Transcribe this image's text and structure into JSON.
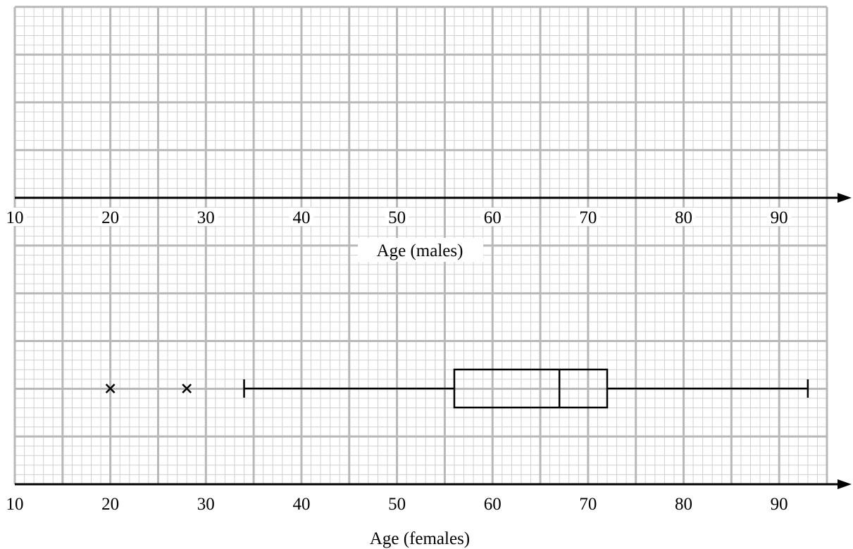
{
  "chart_data": [
    {
      "type": "boxplot",
      "xlabel": "Age (males)",
      "xlim": [
        10,
        95
      ],
      "xticks": [
        10,
        20,
        30,
        40,
        50,
        60,
        70,
        80,
        90
      ],
      "tick_labels": [
        "10",
        "20",
        "30",
        "40",
        "50",
        "60",
        "70",
        "80",
        "90"
      ],
      "boxes": []
    },
    {
      "type": "boxplot",
      "xlabel": "Age (females)",
      "xlim": [
        10,
        95
      ],
      "xticks": [
        10,
        20,
        30,
        40,
        50,
        60,
        70,
        80,
        90
      ],
      "tick_labels": [
        "10",
        "20",
        "30",
        "40",
        "50",
        "60",
        "70",
        "80",
        "90"
      ],
      "boxes": [
        {
          "whisker_low": 34,
          "q1": 56,
          "median": 67,
          "q3": 72,
          "whisker_high": 93,
          "outliers": [
            20,
            28
          ]
        }
      ]
    }
  ],
  "grid": {
    "major_x": 5,
    "minor_x": 1,
    "major_color": "#b8b8b8",
    "minor_color": "#d0d0d0"
  },
  "colors": {
    "ink": "#000000",
    "paper": "#ffffff"
  }
}
